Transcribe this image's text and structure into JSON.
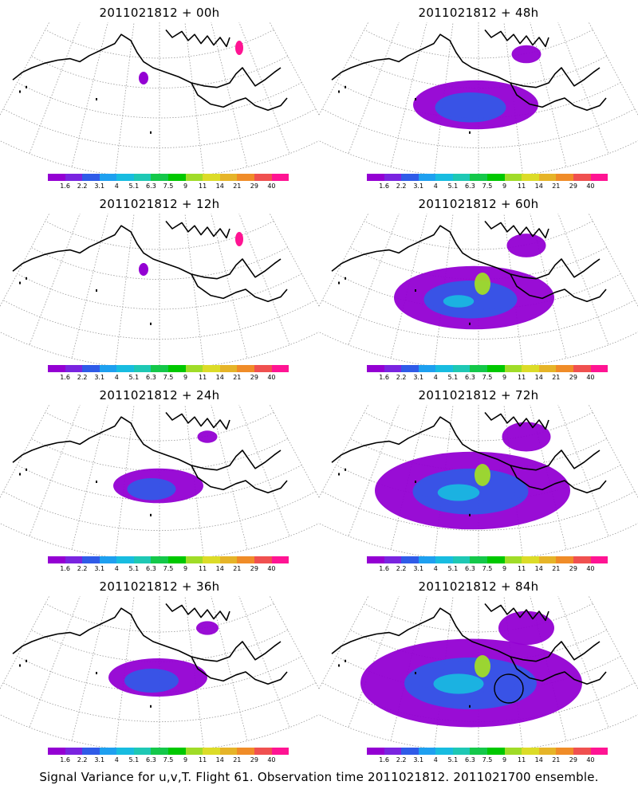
{
  "caption": "Signal Variance for u,v,T. Flight 61. Observation time 2011021812. 2011021700 ensemble.",
  "colorbar": {
    "labels": [
      "1.6",
      "2.2",
      "3.1",
      "4",
      "5.1",
      "6.3",
      "7.5",
      "9",
      "11",
      "14",
      "21",
      "29",
      "40"
    ],
    "colors": [
      "#9400d3",
      "#7a24e0",
      "#2f5be8",
      "#1ea0f0",
      "#18bce0",
      "#1ec8b4",
      "#14c84a",
      "#00c800",
      "#a0dc28",
      "#dcdc28",
      "#e6b428",
      "#f08c28",
      "#f05050",
      "#ff1493"
    ]
  },
  "panels": [
    {
      "title": "2011021812 + 00h",
      "lead_hours": 0,
      "signal_level": 0.05
    },
    {
      "title": "2011021812 + 48h",
      "lead_hours": 48,
      "signal_level": 0.35
    },
    {
      "title": "2011021812 + 12h",
      "lead_hours": 12,
      "signal_level": 0.05
    },
    {
      "title": "2011021812 + 60h",
      "lead_hours": 60,
      "signal_level": 0.55
    },
    {
      "title": "2011021812 + 24h",
      "lead_hours": 24,
      "signal_level": 0.15
    },
    {
      "title": "2011021812 + 72h",
      "lead_hours": 72,
      "signal_level": 0.75
    },
    {
      "title": "2011021812 + 36h",
      "lead_hours": 36,
      "signal_level": 0.2
    },
    {
      "title": "2011021812 + 84h",
      "lead_hours": 84,
      "signal_level": 0.9
    }
  ]
}
